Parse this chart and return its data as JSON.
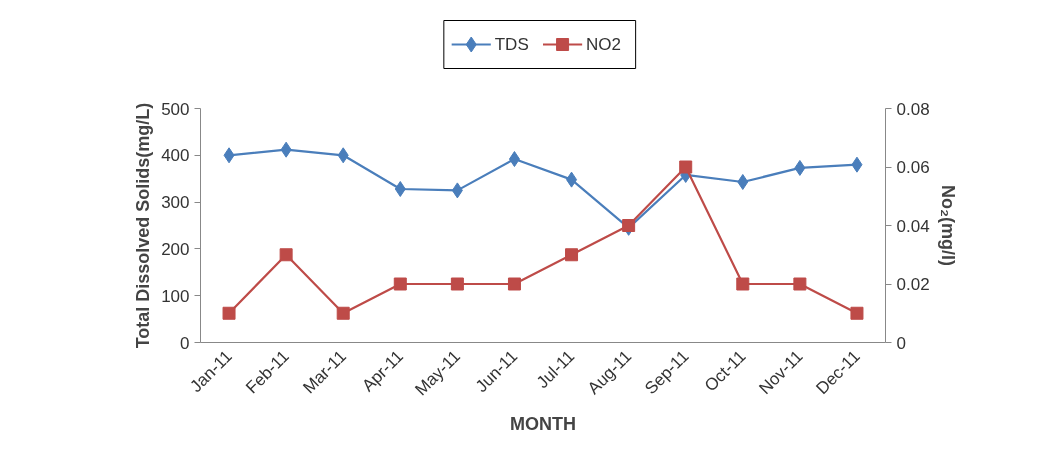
{
  "chart_data": {
    "type": "line",
    "xlabel": "MONTH",
    "ylabel": "Total Dissolved Solids(mg/L)",
    "y2label": "No₂(mg/l)",
    "categories": [
      "Jan-11",
      "Feb-11",
      "Mar-11",
      "Apr-11",
      "May-11",
      "Jun-11",
      "Jul-11",
      "Aug-11",
      "Sep-11",
      "Oct-11",
      "Nov-11",
      "Dec-11"
    ],
    "series": [
      {
        "name": "TDS",
        "color": "#4a7ebb",
        "marker": "diamond",
        "values": [
          400,
          412,
          400,
          328,
          325,
          392,
          348,
          245,
          358,
          343,
          373,
          380
        ]
      },
      {
        "name": "NO2",
        "color": "#be4b48",
        "marker": "square",
        "axis": "y2",
        "values": [
          0.01,
          0.03,
          0.01,
          0.02,
          0.02,
          0.02,
          0.03,
          0.04,
          0.06,
          0.02,
          0.02,
          0.01
        ]
      }
    ],
    "ylim": [
      0,
      500
    ],
    "yticks": [
      0,
      100,
      200,
      300,
      400,
      500
    ],
    "y2lim": [
      0,
      0.08
    ],
    "y2ticks": [
      0,
      0.02,
      0.04,
      0.06,
      0.08
    ],
    "grid": false,
    "legend": "top"
  }
}
